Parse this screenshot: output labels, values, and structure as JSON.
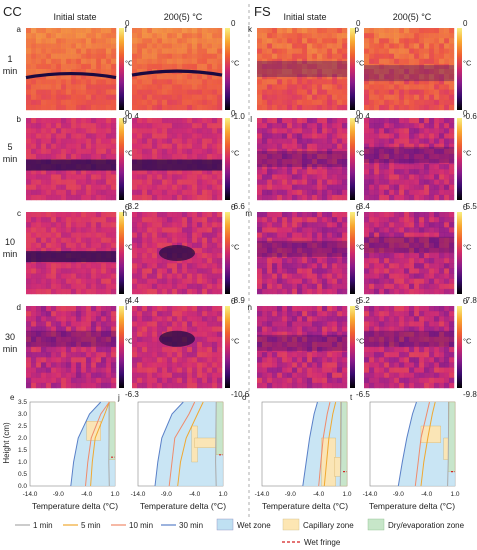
{
  "sections": [
    {
      "label": "CC",
      "columns": [
        "Initial state",
        "200(5) °C"
      ]
    },
    {
      "label": "FS",
      "columns": [
        "Initial state",
        "200(5) °C"
      ]
    }
  ],
  "rows": [
    {
      "time": "1",
      "unit": "min"
    },
    {
      "time": "5",
      "unit": "min"
    },
    {
      "time": "10",
      "unit": "min"
    },
    {
      "time": "30",
      "unit": "min"
    }
  ],
  "colorbar": {
    "unit": "°C",
    "top_label": "0"
  },
  "panels": [
    {
      "letter": "a",
      "min": "-0.4",
      "pattern": "band-thin",
      "band": 0.58
    },
    {
      "letter": "f",
      "min": "-1.0",
      "pattern": "band-thin",
      "band": 0.55
    },
    {
      "letter": "k",
      "min": "-0.4",
      "pattern": "diffuse-light",
      "band": 0.5
    },
    {
      "letter": "p",
      "min": "-0.6",
      "pattern": "diffuse-light",
      "band": 0.55
    },
    {
      "letter": "b",
      "min": "-3.2",
      "pattern": "band-thick",
      "band": 0.58
    },
    {
      "letter": "g",
      "min": "-6.6",
      "pattern": "band-thick",
      "band": 0.58
    },
    {
      "letter": "l",
      "min": "-3.4",
      "pattern": "diffuse",
      "band": 0.5
    },
    {
      "letter": "q",
      "min": "-5.5",
      "pattern": "diffuse",
      "band": 0.45
    },
    {
      "letter": "c",
      "min": "-4.4",
      "pattern": "band-thick",
      "band": 0.55
    },
    {
      "letter": "h",
      "min": "-8.9",
      "pattern": "spot",
      "band": 0.5
    },
    {
      "letter": "m",
      "min": "-5.2",
      "pattern": "diffuse",
      "band": 0.45
    },
    {
      "letter": "r",
      "min": "-7.8",
      "pattern": "diffuse",
      "band": 0.4
    },
    {
      "letter": "d",
      "min": "-6.3",
      "pattern": "diffuse",
      "band": 0.4
    },
    {
      "letter": "i",
      "min": "-10.6",
      "pattern": "spot",
      "band": 0.4
    },
    {
      "letter": "n",
      "min": "-6.5",
      "pattern": "diffuse",
      "band": 0.45
    },
    {
      "letter": "s",
      "min": "-9.8",
      "pattern": "diffuse",
      "band": 0.4
    }
  ],
  "colors": {
    "wet": "#bfe0f2",
    "capillary": "#fde6b3",
    "dry": "#c7e6c9",
    "line_1": "#aaaaaa",
    "line_5": "#f0a830",
    "line_10": "#f08a6a",
    "line_30": "#5a80c8",
    "fringe": "#d32020",
    "cmap": [
      "#000000",
      "#3a0a6e",
      "#8a1a8a",
      "#d02a6a",
      "#f06030",
      "#f8a830",
      "#f8f080"
    ]
  },
  "profile_axes": {
    "ylabel": "Height (cm)",
    "xlabel": "Temperature delta (°C)",
    "yticks": [
      "3.5",
      "3.0",
      "2.5",
      "2.0",
      "1.5",
      "1.0",
      "0.5",
      "0.0"
    ],
    "xticks": [
      "-14.0",
      "-9.0",
      "-4.0",
      "1.0"
    ]
  },
  "profile_panels": [
    {
      "letter": "e",
      "curves": {
        "min1": [
          [
            0,
            0.0
          ],
          [
            -0.1,
            1.0
          ],
          [
            0,
            3.5
          ]
        ],
        "min5": [
          [
            -3.3,
            0.0
          ],
          [
            -3.0,
            1.0
          ],
          [
            -2.5,
            2.0
          ],
          [
            -0.8,
            3.0
          ],
          [
            0,
            3.5
          ]
        ],
        "min10": [
          [
            -4.2,
            0.0
          ],
          [
            -3.8,
            1.0
          ],
          [
            -3.2,
            2.0
          ],
          [
            -1.5,
            3.0
          ],
          [
            0,
            3.5
          ]
        ],
        "min30": [
          [
            -6.8,
            0.0
          ],
          [
            -6.3,
            1.0
          ],
          [
            -5.5,
            2.0
          ],
          [
            -3.5,
            3.0
          ],
          [
            -1.5,
            3.5
          ]
        ]
      },
      "zones": [
        [
          -4.0,
          1.9,
          -1.5,
          2.7
        ],
        [
          -0.1,
          1.1,
          1.0,
          3.5
        ]
      ],
      "fringe": 1.2
    },
    {
      "letter": "j",
      "curves": {
        "min1": [
          [
            -0.2,
            0.0
          ],
          [
            -0.3,
            1.0
          ],
          [
            -0.2,
            3.5
          ]
        ],
        "min5": [
          [
            -7.0,
            0.0
          ],
          [
            -6.5,
            1.0
          ],
          [
            -5.5,
            2.0
          ],
          [
            -3.5,
            3.0
          ],
          [
            -2.5,
            3.5
          ]
        ],
        "min10": [
          [
            -8.5,
            0.0
          ],
          [
            -8.0,
            1.0
          ],
          [
            -7.5,
            2.0
          ],
          [
            -5.0,
            3.0
          ],
          [
            -4.0,
            3.5
          ]
        ],
        "min30": [
          [
            -11.0,
            0.0
          ],
          [
            -10.5,
            1.0
          ],
          [
            -9.8,
            2.0
          ],
          [
            -8.0,
            3.0
          ],
          [
            -6.0,
            3.5
          ]
        ]
      },
      "zones": [
        [
          -4.5,
          1.0,
          -3.5,
          2.5
        ],
        [
          -4.0,
          1.6,
          0.0,
          2.0
        ],
        [
          -0.2,
          1.3,
          1.0,
          3.5
        ]
      ],
      "fringe": 1.3
    },
    {
      "letter": "o",
      "curves": {
        "min1": [
          [
            -0.2,
            0.0
          ],
          [
            -0.1,
            1.0
          ],
          [
            0,
            3.5
          ]
        ],
        "min5": [
          [
            -3.0,
            0.0
          ],
          [
            -2.6,
            1.0
          ],
          [
            -2.2,
            2.0
          ],
          [
            -1.5,
            3.0
          ],
          [
            -1.0,
            3.5
          ]
        ],
        "min10": [
          [
            -4.0,
            0.0
          ],
          [
            -3.6,
            1.0
          ],
          [
            -3.2,
            2.0
          ],
          [
            -2.5,
            3.0
          ],
          [
            -2.0,
            3.5
          ]
        ],
        "min30": [
          [
            -6.8,
            0.0
          ],
          [
            -6.2,
            1.0
          ],
          [
            -5.6,
            2.0
          ],
          [
            -4.8,
            3.0
          ],
          [
            -4.2,
            3.5
          ]
        ]
      },
      "zones": [
        [
          -3.5,
          0.0,
          -1.0,
          2.0
        ],
        [
          -1.2,
          0.4,
          0.0,
          1.2
        ],
        [
          -0.2,
          0.0,
          1.0,
          3.5
        ]
      ],
      "fringe": 0.6
    },
    {
      "letter": "t",
      "curves": {
        "min1": [
          [
            -0.3,
            0.0
          ],
          [
            -0.2,
            1.0
          ],
          [
            -0.1,
            3.5
          ]
        ],
        "min5": [
          [
            -5.0,
            0.0
          ],
          [
            -4.5,
            1.0
          ],
          [
            -3.8,
            2.0
          ],
          [
            -3.0,
            3.0
          ],
          [
            -2.5,
            3.5
          ]
        ],
        "min10": [
          [
            -6.0,
            0.0
          ],
          [
            -5.5,
            1.0
          ],
          [
            -5.0,
            2.0
          ],
          [
            -4.0,
            3.0
          ],
          [
            -3.5,
            3.5
          ]
        ],
        "min30": [
          [
            -9.0,
            0.0
          ],
          [
            -8.3,
            1.0
          ],
          [
            -7.5,
            2.0
          ],
          [
            -6.5,
            3.0
          ],
          [
            -5.8,
            3.5
          ]
        ]
      },
      "zones": [
        [
          -5.0,
          1.8,
          -1.5,
          2.5
        ],
        [
          -1.0,
          1.1,
          0.0,
          2.0
        ],
        [
          -0.2,
          0.6,
          1.0,
          3.5
        ]
      ],
      "fringe": 0.6
    }
  ],
  "legend": {
    "line_1": "1 min",
    "line_5": "5 min",
    "line_10": "10 min",
    "line_30": "30 min",
    "wet": "Wet zone",
    "capillary": "Capillary zone",
    "dry": "Dry/evaporation zone",
    "fringe": "Wet fringe"
  }
}
